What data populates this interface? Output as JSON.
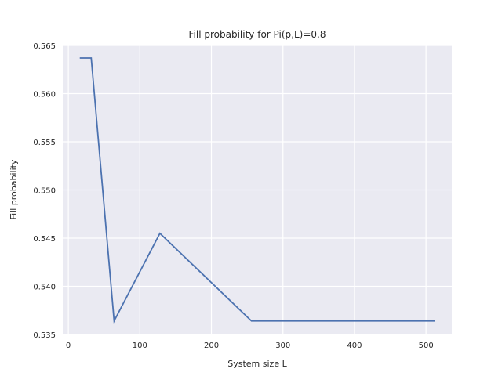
{
  "chart_data": {
    "type": "line",
    "title": "Fill probability for Pi(p,L)=0.8",
    "xlabel": "System size L",
    "ylabel": "Fill probability",
    "xlim": [
      -7.8,
      536.0
    ],
    "ylim": [
      0.535,
      0.565
    ],
    "xticks": [
      0,
      100,
      200,
      300,
      400,
      500
    ],
    "xtick_labels": [
      "0",
      "100",
      "200",
      "300",
      "400",
      "500"
    ],
    "yticks": [
      0.535,
      0.54,
      0.545,
      0.55,
      0.555,
      0.56,
      0.565
    ],
    "ytick_labels": [
      "0.535",
      "0.540",
      "0.545",
      "0.550",
      "0.555",
      "0.560",
      "0.565"
    ],
    "grid": true,
    "series": [
      {
        "x": [
          16,
          32,
          64,
          128,
          256,
          512
        ],
        "y": [
          0.5637,
          0.5637,
          0.5364,
          0.5455,
          0.5364,
          0.5364
        ],
        "color": "#4c72b0"
      }
    ],
    "colors": {
      "plot_background": "#eaeaf2",
      "grid": "#ffffff",
      "line": "#4c72b0",
      "text": "#262626"
    }
  }
}
